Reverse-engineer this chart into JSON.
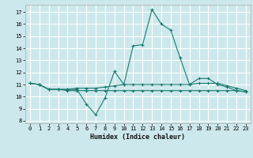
{
  "title": "",
  "xlabel": "Humidex (Indice chaleur)",
  "background_color": "#cce8ec",
  "grid_color": "#ffffff",
  "line_color": "#1a7a6e",
  "xlim": [
    -0.5,
    23.5
  ],
  "ylim": [
    7.8,
    17.6
  ],
  "yticks": [
    8,
    9,
    10,
    11,
    12,
    13,
    14,
    15,
    16,
    17
  ],
  "xticks": [
    0,
    1,
    2,
    3,
    4,
    5,
    6,
    7,
    8,
    9,
    10,
    11,
    12,
    13,
    14,
    15,
    16,
    17,
    18,
    19,
    20,
    21,
    22,
    23
  ],
  "line1_x": [
    0,
    1,
    2,
    3,
    4,
    5,
    6,
    7,
    8,
    9,
    10,
    11,
    12,
    13,
    14,
    15,
    16,
    17,
    18,
    19,
    20,
    21,
    22,
    23
  ],
  "line1_y": [
    11.1,
    11.0,
    10.6,
    10.6,
    10.6,
    10.6,
    9.4,
    8.5,
    9.9,
    12.1,
    11.0,
    14.2,
    14.3,
    17.2,
    16.0,
    15.5,
    13.2,
    11.0,
    11.5,
    11.5,
    11.0,
    10.8,
    10.5,
    10.4
  ],
  "line2_x": [
    0,
    1,
    2,
    3,
    4,
    5,
    6,
    7,
    8,
    9,
    10,
    11,
    12,
    13,
    14,
    15,
    16,
    17,
    18,
    19,
    20,
    21,
    22,
    23
  ],
  "line2_y": [
    11.1,
    11.0,
    10.6,
    10.6,
    10.6,
    10.7,
    10.7,
    10.7,
    10.8,
    10.9,
    11.0,
    11.0,
    11.0,
    11.0,
    11.0,
    11.0,
    11.0,
    11.0,
    11.1,
    11.1,
    11.1,
    10.9,
    10.7,
    10.5
  ],
  "line3_x": [
    0,
    1,
    2,
    3,
    4,
    5,
    6,
    7,
    8,
    9,
    10,
    11,
    12,
    13,
    14,
    15,
    16,
    17,
    18,
    19,
    20,
    21,
    22,
    23
  ],
  "line3_y": [
    11.1,
    11.0,
    10.6,
    10.6,
    10.5,
    10.5,
    10.5,
    10.5,
    10.5,
    10.5,
    10.5,
    10.5,
    10.5,
    10.5,
    10.5,
    10.5,
    10.5,
    10.5,
    10.5,
    10.5,
    10.5,
    10.5,
    10.5,
    10.4
  ],
  "xlabel_fontsize": 6.0,
  "tick_fontsize": 5.0
}
